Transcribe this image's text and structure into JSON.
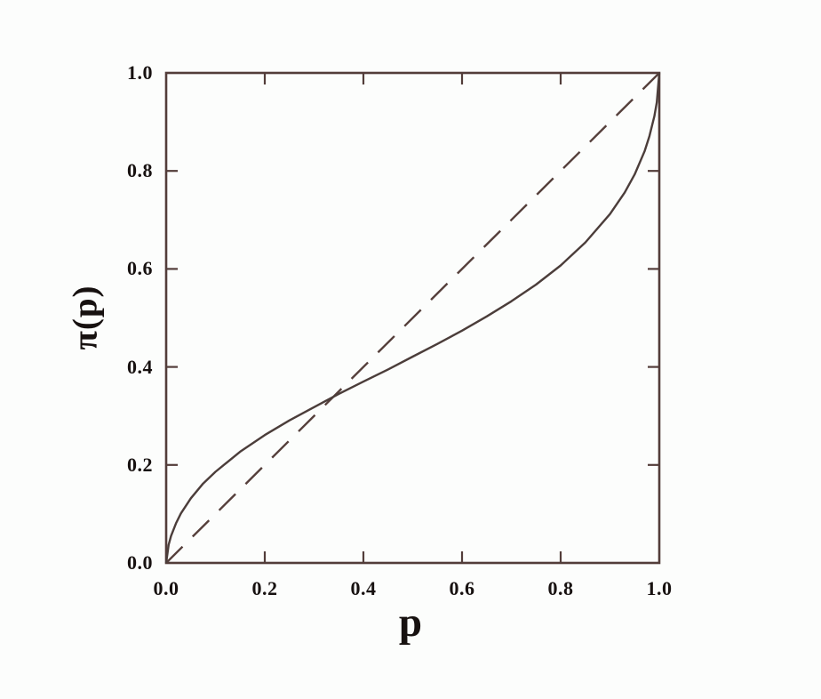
{
  "figure": {
    "xlabel": "p",
    "ylabel": "π(p)"
  },
  "colors": {
    "paper": "#fcfdfc",
    "axis_ink": "#533d3a",
    "solid_curve": "#4b3d3a",
    "dashed_line": "#553f3b",
    "label_text": "#171110"
  },
  "chart_data": {
    "type": "line",
    "title": "",
    "xlabel": "p",
    "ylabel": "π(p)",
    "xlim": [
      0,
      1
    ],
    "ylim": [
      0,
      1
    ],
    "grid": false,
    "legend": "none",
    "frame": "full box with inward tick marks on all four sides",
    "x_ticks": [
      0.0,
      0.2,
      0.4,
      0.6,
      0.8,
      1.0
    ],
    "x_tick_labels": [
      "0.0",
      "0.2",
      "0.4",
      "0.6",
      "0.8",
      "1.0"
    ],
    "y_ticks": [
      0.0,
      0.2,
      0.4,
      0.6,
      0.8,
      1.0
    ],
    "y_tick_labels": [
      "0.0",
      "0.2",
      "0.4",
      "0.6",
      "0.8",
      "1.0"
    ],
    "series": [
      {
        "name": "probability-weighting-curve",
        "line_style": "solid",
        "description": "inverse-S probability weighting function, steep near 0 and 1, crosses the diagonal near p = 0.33",
        "x": [
          0,
          0.005,
          0.01,
          0.02,
          0.03,
          0.05,
          0.075,
          0.1,
          0.15,
          0.2,
          0.25,
          0.3,
          0.35,
          0.4,
          0.45,
          0.5,
          0.55,
          0.6,
          0.65,
          0.7,
          0.75,
          0.8,
          0.85,
          0.9,
          0.93,
          0.95,
          0.97,
          0.98,
          0.99,
          0.995,
          1
        ],
        "y": [
          0,
          0.037,
          0.055,
          0.081,
          0.101,
          0.132,
          0.162,
          0.186,
          0.227,
          0.261,
          0.291,
          0.318,
          0.345,
          0.37,
          0.395,
          0.421,
          0.447,
          0.474,
          0.503,
          0.534,
          0.568,
          0.607,
          0.654,
          0.712,
          0.756,
          0.793,
          0.84,
          0.871,
          0.912,
          0.94,
          1
        ],
        "crosses_diagonal_at": [
          0.33,
          0.33
        ]
      },
      {
        "name": "identity-diagonal",
        "line_style": "dashed",
        "description": "45-degree reference line π(p) = p",
        "x": [
          0,
          1
        ],
        "y": [
          0,
          1
        ]
      }
    ]
  }
}
